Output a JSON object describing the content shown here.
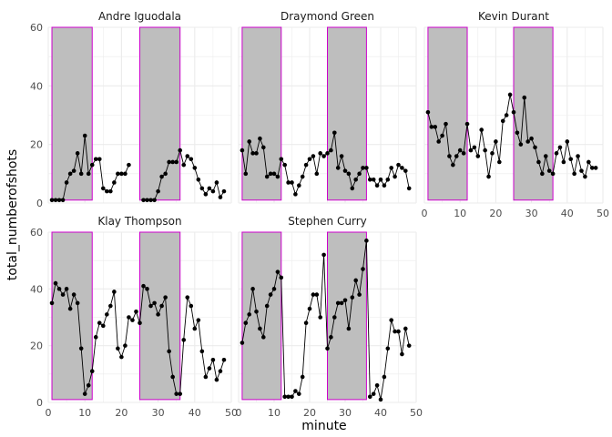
{
  "chart_data": {
    "type": "line",
    "xlabel": "minute",
    "ylabel": "total_numberofshots",
    "xlim": [
      0,
      50
    ],
    "ylim": [
      0,
      60
    ],
    "x_ticks": [
      0,
      10,
      20,
      30,
      40,
      50
    ],
    "y_ticks": [
      0,
      20,
      40,
      60
    ],
    "grid": true,
    "shaded_periods": [
      {
        "x_start": 1,
        "x_end": 12,
        "y_start": 1,
        "y_end": 60
      },
      {
        "x_start": 25,
        "x_end": 36,
        "y_start": 1,
        "y_end": 60
      }
    ],
    "colors": {
      "shade_fill": "#bebebe",
      "shade_stroke": "#cc00cc",
      "line": "#000000",
      "point": "#000000",
      "grid": "#ebebeb"
    },
    "panels": [
      {
        "title": "Andre Iguodala",
        "x": [
          1,
          2,
          3,
          4,
          5,
          6,
          7,
          8,
          9,
          10,
          11,
          12,
          13,
          14,
          15,
          16,
          17,
          18,
          19,
          20,
          21,
          22,
          23,
          24,
          25,
          26,
          27,
          28,
          29,
          30,
          31,
          32,
          33,
          34,
          35,
          36,
          37,
          38,
          39,
          40,
          41,
          42,
          43,
          44,
          45,
          46,
          47,
          48
        ],
        "y": [
          1,
          1,
          1,
          1,
          7,
          10,
          11,
          17,
          10,
          23,
          10,
          13,
          15,
          15,
          5,
          4,
          4,
          7,
          10,
          10,
          10,
          13,
          null,
          null,
          null,
          1,
          1,
          1,
          1,
          4,
          9,
          10,
          14,
          14,
          14,
          18,
          13,
          16,
          15,
          12,
          8,
          5,
          3,
          5,
          4,
          7,
          2,
          4
        ]
      },
      {
        "title": "Draymond Green",
        "x": [
          1,
          2,
          3,
          4,
          5,
          6,
          7,
          8,
          9,
          10,
          11,
          12,
          13,
          14,
          15,
          16,
          17,
          18,
          19,
          20,
          21,
          22,
          23,
          24,
          25,
          26,
          27,
          28,
          29,
          30,
          31,
          32,
          33,
          34,
          35,
          36,
          37,
          38,
          39,
          40,
          41,
          42,
          43,
          44,
          45,
          46,
          47,
          48
        ],
        "y": [
          18,
          10,
          21,
          17,
          17,
          22,
          19,
          9,
          10,
          10,
          9,
          15,
          13,
          7,
          7,
          3,
          6,
          9,
          13,
          15,
          16,
          10,
          17,
          16,
          17,
          18,
          24,
          12,
          16,
          11,
          10,
          5,
          8,
          10,
          12,
          12,
          8,
          8,
          6,
          8,
          6,
          8,
          12,
          9,
          13,
          12,
          11,
          5
        ]
      },
      {
        "title": "Kevin Durant",
        "x": [
          1,
          2,
          3,
          4,
          5,
          6,
          7,
          8,
          9,
          10,
          11,
          12,
          13,
          14,
          15,
          16,
          17,
          18,
          19,
          20,
          21,
          22,
          23,
          24,
          25,
          26,
          27,
          28,
          29,
          30,
          31,
          32,
          33,
          34,
          35,
          36,
          37,
          38,
          39,
          40,
          41,
          42,
          43,
          44,
          45,
          46,
          47,
          48
        ],
        "y": [
          31,
          26,
          26,
          21,
          23,
          27,
          16,
          13,
          16,
          18,
          17,
          27,
          18,
          19,
          16,
          25,
          18,
          9,
          17,
          21,
          14,
          28,
          30,
          37,
          31,
          24,
          20,
          36,
          21,
          22,
          19,
          14,
          10,
          16,
          11,
          10,
          17,
          19,
          14,
          21,
          15,
          10,
          16,
          11,
          9,
          14,
          12,
          12
        ]
      },
      {
        "title": "Klay Thompson",
        "x": [
          1,
          2,
          3,
          4,
          5,
          6,
          7,
          8,
          9,
          10,
          11,
          12,
          13,
          14,
          15,
          16,
          17,
          18,
          19,
          20,
          21,
          22,
          23,
          24,
          25,
          26,
          27,
          28,
          29,
          30,
          31,
          32,
          33,
          34,
          35,
          36,
          37,
          38,
          39,
          40,
          41,
          42,
          43,
          44,
          45,
          46,
          47,
          48
        ],
        "y": [
          35,
          42,
          40,
          38,
          40,
          33,
          38,
          35,
          19,
          3,
          6,
          11,
          23,
          28,
          27,
          31,
          34,
          39,
          19,
          16,
          20,
          30,
          29,
          32,
          28,
          41,
          40,
          34,
          35,
          31,
          34,
          37,
          18,
          9,
          3,
          3,
          22,
          37,
          34,
          26,
          29,
          18,
          9,
          12,
          15,
          8,
          11,
          15
        ]
      },
      {
        "title": "Stephen Curry",
        "x": [
          1,
          2,
          3,
          4,
          5,
          6,
          7,
          8,
          9,
          10,
          11,
          12,
          13,
          14,
          15,
          16,
          17,
          18,
          19,
          20,
          21,
          22,
          23,
          24,
          25,
          26,
          27,
          28,
          29,
          30,
          31,
          32,
          33,
          34,
          35,
          36,
          37,
          38,
          39,
          40,
          41,
          42,
          43,
          44,
          45,
          46,
          47,
          48
        ],
        "y": [
          21,
          28,
          31,
          40,
          32,
          26,
          23,
          34,
          38,
          40,
          46,
          44,
          2,
          2,
          2,
          4,
          3,
          9,
          28,
          33,
          38,
          38,
          30,
          52,
          19,
          23,
          30,
          35,
          35,
          36,
          26,
          37,
          43,
          38,
          47,
          57,
          2,
          3,
          6,
          1,
          9,
          19,
          29,
          25,
          25,
          17,
          26,
          20
        ]
      }
    ]
  }
}
